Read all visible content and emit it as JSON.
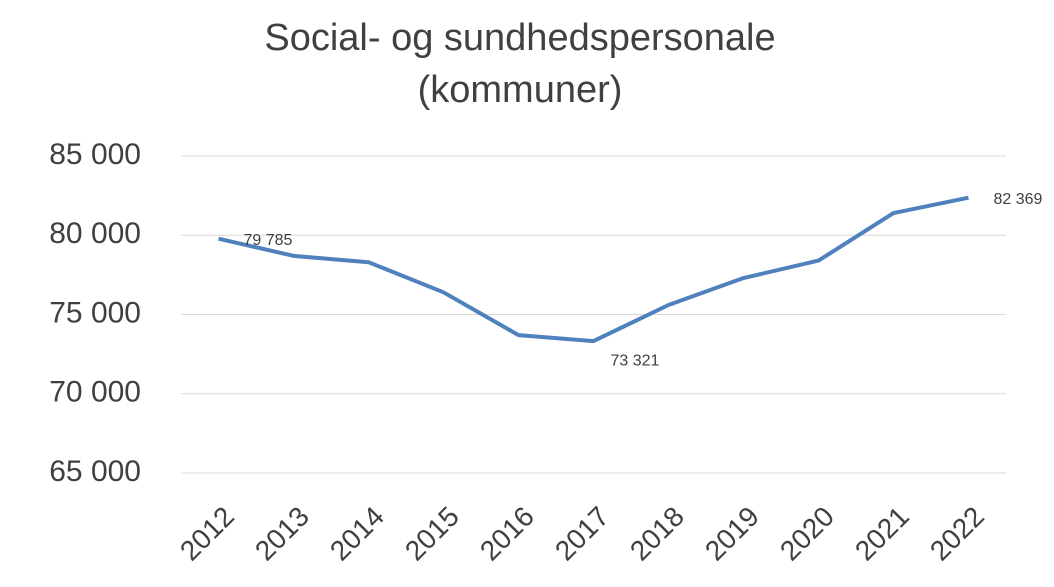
{
  "chart_data": {
    "type": "line",
    "title": [
      "Social- og sundhedspersonale",
      "(kommuner)"
    ],
    "categories": [
      "2012",
      "2013",
      "2014",
      "2015",
      "2016",
      "2017",
      "2018",
      "2019",
      "2020",
      "2021",
      "2022"
    ],
    "series": [
      {
        "color": "#4f81bd",
        "values": [
          79785,
          78700,
          78300,
          76400,
          73700,
          73321,
          75600,
          77300,
          78400,
          81400,
          82369
        ],
        "value_labels": [
          "79 785",
          null,
          null,
          null,
          null,
          "73 321",
          null,
          null,
          null,
          null,
          "82 369"
        ]
      }
    ],
    "ylim": [
      65000,
      85000
    ],
    "yticks": [
      {
        "value": 65000,
        "label": "65 000"
      },
      {
        "value": 70000,
        "label": "70 000"
      },
      {
        "value": 75000,
        "label": "75 000"
      },
      {
        "value": 80000,
        "label": "80 000"
      },
      {
        "value": 85000,
        "label": "85 000"
      }
    ],
    "grid": true
  }
}
